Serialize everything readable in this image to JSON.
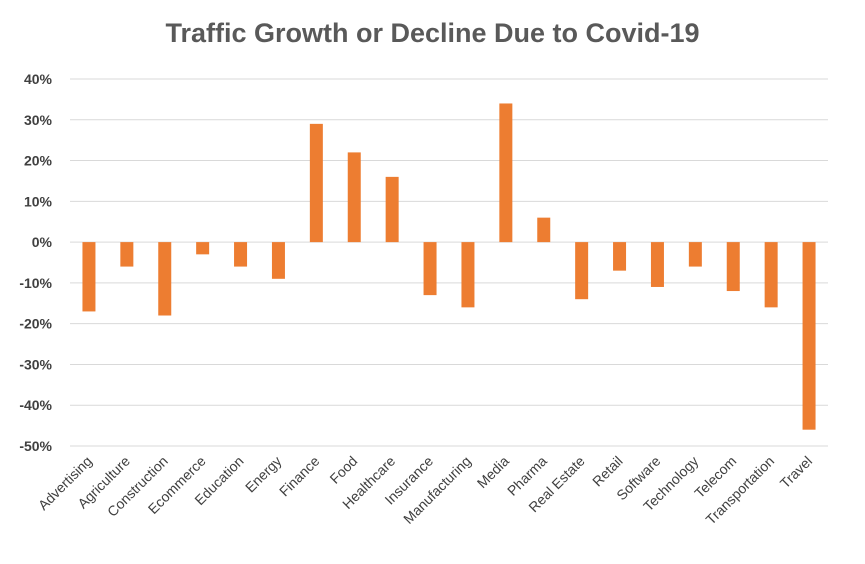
{
  "chart_data": {
    "type": "bar",
    "title": "Traffic Growth or Decline Due to Covid-19",
    "xlabel": "",
    "ylabel": "",
    "ylim": [
      -50,
      40
    ],
    "yticks": [
      40,
      30,
      20,
      10,
      0,
      -10,
      -20,
      -30,
      -40,
      -50
    ],
    "ytick_labels": [
      "40%",
      "30%",
      "20%",
      "10%",
      "0%",
      "-10%",
      "-20%",
      "-30%",
      "-40%",
      "-50%"
    ],
    "grid": true,
    "bar_color": "#ED7D31",
    "grid_color": "#D9D9D9",
    "categories": [
      "Advertising",
      "Agriculture",
      "Construction",
      "Ecommerce",
      "Education",
      "Energy",
      "Finance",
      "Food",
      "Healthcare",
      "Insurance",
      "Manufacturing",
      "Media",
      "Pharma",
      "Real Estate",
      "Retail",
      "Software",
      "Technology",
      "Telecom",
      "Transportation",
      "Travel"
    ],
    "values": [
      -17,
      -6,
      -18,
      -3,
      -6,
      -9,
      29,
      22,
      16,
      -13,
      -16,
      34,
      6,
      -14,
      -7,
      -11,
      -6,
      -12,
      -16,
      -46
    ]
  }
}
